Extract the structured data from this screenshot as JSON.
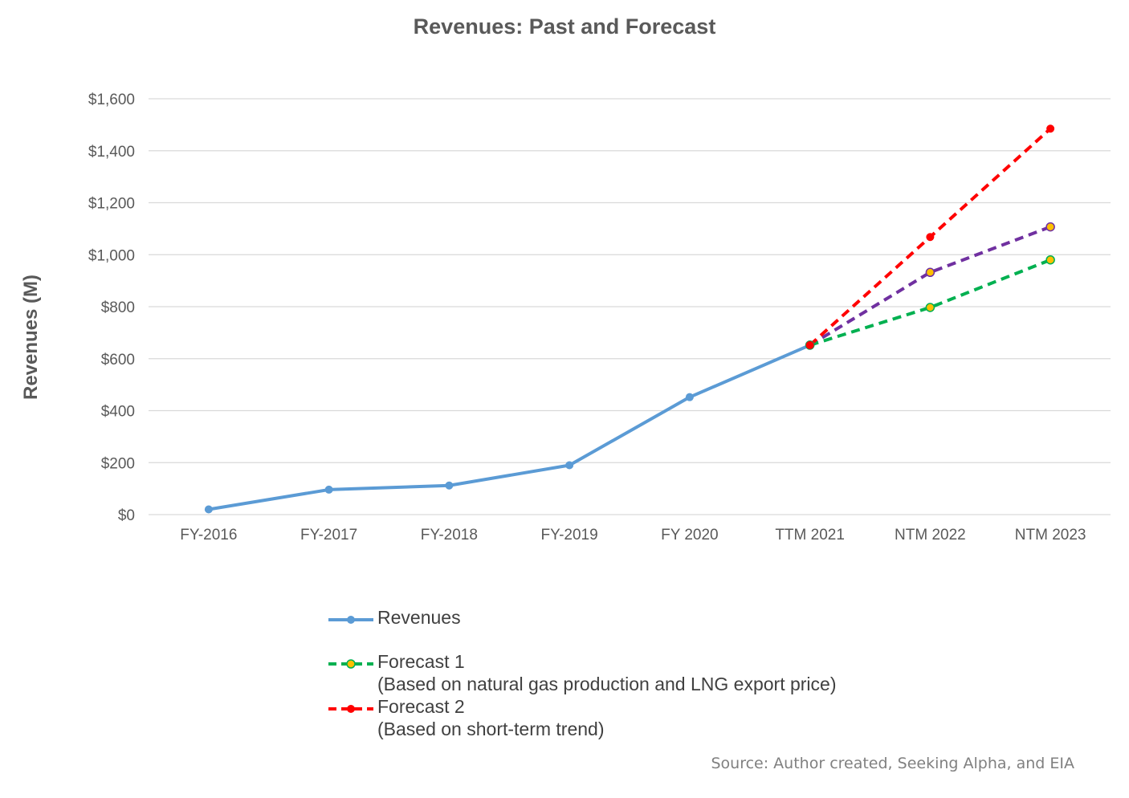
{
  "chart_data": {
    "type": "line",
    "title": "Revenues: Past and Forecast",
    "xlabel": "",
    "ylabel": "Revenues (M)",
    "categories": [
      "FY-2016",
      "FY-2017",
      "FY-2018",
      "FY-2019",
      "FY 2020",
      "TTM 2021",
      "NTM 2022",
      "NTM 2023"
    ],
    "ylim": [
      0,
      1600
    ],
    "yticks": [
      0,
      200,
      400,
      600,
      800,
      1000,
      1200,
      1400,
      1600
    ],
    "ytick_labels": [
      "$0",
      "$200",
      "$400",
      "$600",
      "$800",
      "$1,000",
      "$1,200",
      "$1,400",
      "$1,600"
    ],
    "grid": "horizontal",
    "legend_position": "bottom",
    "series": [
      {
        "name": "Revenues",
        "color": "#5B9BD5",
        "style": "solid",
        "marker_fill": "#5B9BD5",
        "values": [
          20,
          96,
          112,
          190,
          452,
          652,
          null,
          null
        ]
      },
      {
        "name": "",
        "color": "#7030A0",
        "style": "dashed",
        "marker_fill": "#FFC000",
        "marker_edge": "#7030A0",
        "values": [
          null,
          null,
          null,
          null,
          null,
          652,
          932,
          1107
        ]
      },
      {
        "name": "Forecast 1",
        "color": "#00B050",
        "style": "dashed",
        "marker_fill": "#FFC000",
        "marker_edge": "#00B050",
        "values": [
          null,
          null,
          null,
          null,
          null,
          652,
          797,
          980
        ]
      },
      {
        "name": "Forecast 2",
        "color": "#FF0000",
        "style": "dashed",
        "marker_fill": "#FF0000",
        "values": [
          null,
          null,
          null,
          null,
          null,
          652,
          1068,
          1485
        ]
      }
    ]
  },
  "legend": {
    "items": [
      {
        "line1": "Revenues",
        "line2": ""
      },
      {
        "line1": "Forecast 1",
        "line2": "(Based on natural gas production and LNG export price)"
      },
      {
        "line1": "Forecast 2",
        "line2": "(Based on short-term trend)"
      }
    ]
  },
  "source": "Source: Author created, Seeking Alpha, and EIA"
}
